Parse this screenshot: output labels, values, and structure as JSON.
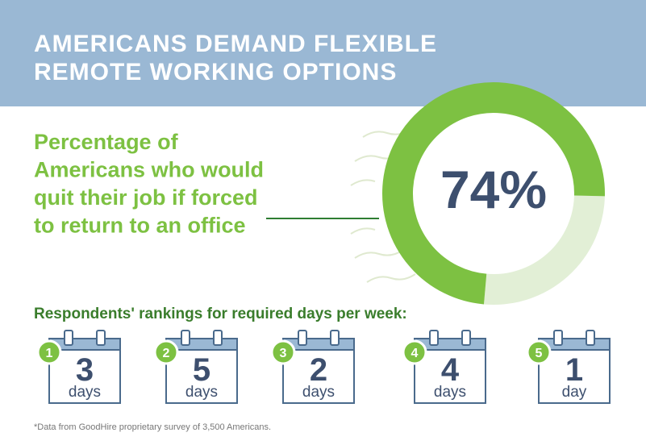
{
  "header": {
    "title_lines": [
      "AMERICANS DEMAND FLEXIBLE",
      "REMOTE WORKING OPTIONS"
    ]
  },
  "chart_data": {
    "type": "donut",
    "title_lines": [
      "Percentage of",
      "Americans who would",
      "quit their job if forced",
      "to return to an office"
    ],
    "values": [
      74
    ],
    "value_labels": [
      "74%"
    ],
    "color": "#7dc142"
  },
  "rankings": {
    "title": "Respondents' rankings for required days per week:",
    "items": [
      {
        "rank": 1,
        "number": 3,
        "unit": "days"
      },
      {
        "rank": 2,
        "number": 5,
        "unit": "days"
      },
      {
        "rank": 3,
        "number": 2,
        "unit": "days"
      },
      {
        "rank": 4,
        "number": 4,
        "unit": "days"
      },
      {
        "rank": 5,
        "number": 1,
        "unit": "day"
      }
    ]
  },
  "footnote": "*Data from GoodHire proprietary survey of 3,500 Americans."
}
